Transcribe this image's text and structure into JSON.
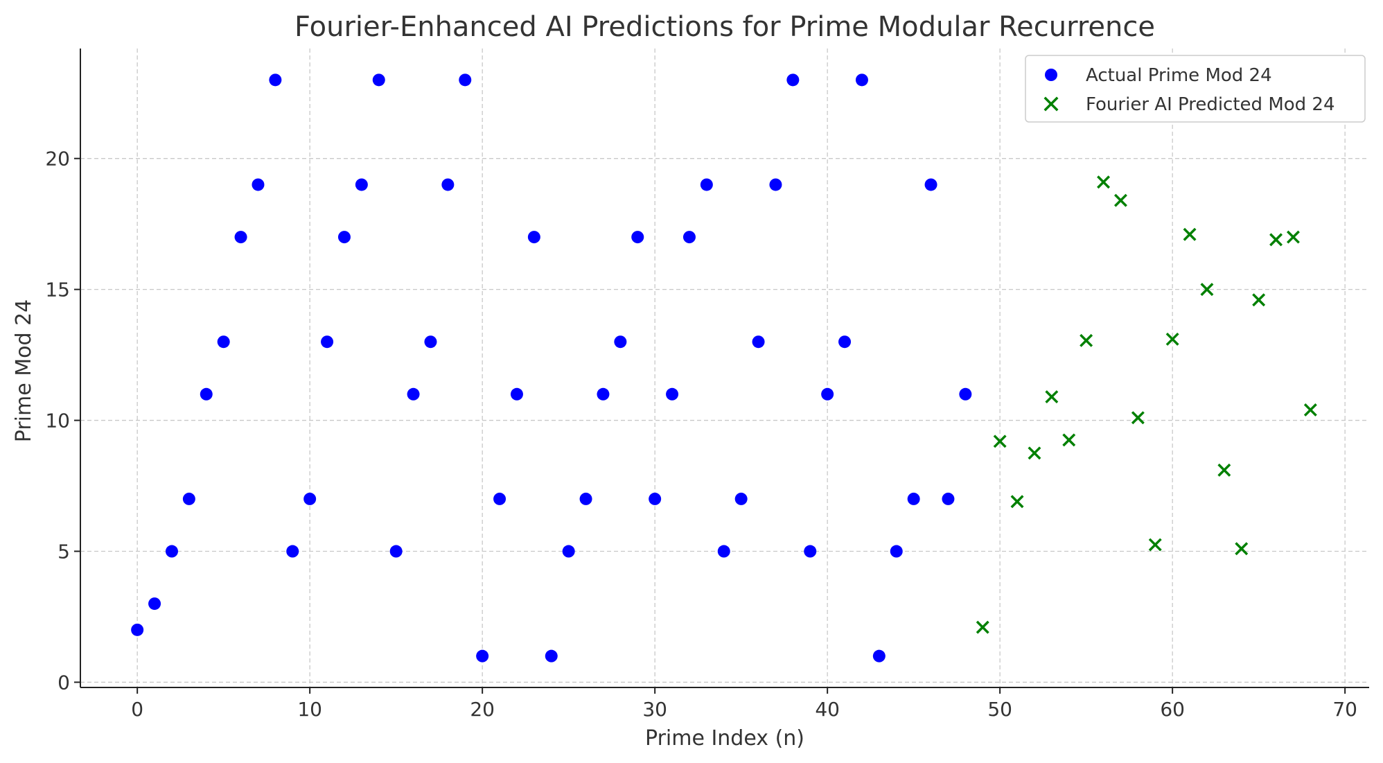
{
  "chart_data": {
    "type": "scatter",
    "title": "Fourier-Enhanced AI Predictions for Prime Modular Recurrence",
    "xlabel": "Prime Index (n)",
    "ylabel": "Prime Mod 24",
    "xlim": [
      -3.3,
      71.4
    ],
    "ylim": [
      -0.2,
      24.2
    ],
    "x_ticks": [
      0,
      10,
      20,
      30,
      40,
      50,
      60,
      70
    ],
    "y_ticks": [
      0,
      5,
      10,
      15,
      20
    ],
    "grid": true,
    "legend_position": "top-right",
    "series": [
      {
        "name": "Actual Prime Mod 24",
        "marker": "circle",
        "color": "#0000ff",
        "x": [
          0,
          1,
          2,
          3,
          4,
          5,
          6,
          7,
          8,
          9,
          10,
          11,
          12,
          13,
          14,
          15,
          16,
          17,
          18,
          19,
          20,
          21,
          22,
          23,
          24,
          25,
          26,
          27,
          28,
          29,
          30,
          31,
          32,
          33,
          34,
          35,
          36,
          37,
          38,
          39,
          40,
          41,
          42,
          43,
          44,
          45,
          46,
          47,
          48
        ],
        "y": [
          2,
          3,
          5,
          7,
          11,
          13,
          17,
          19,
          23,
          5,
          7,
          13,
          17,
          19,
          23,
          5,
          11,
          13,
          19,
          23,
          1,
          7,
          11,
          17,
          1,
          5,
          7,
          11,
          13,
          17,
          7,
          11,
          17,
          19,
          5,
          7,
          13,
          19,
          23,
          5,
          11,
          13,
          23,
          1,
          5,
          7,
          19,
          7,
          11
        ]
      },
      {
        "name": "Fourier AI Predicted Mod 24",
        "marker": "x",
        "color": "#008000",
        "x": [
          49,
          50,
          51,
          52,
          53,
          54,
          55,
          56,
          57,
          58,
          59,
          60,
          61,
          62,
          63,
          64,
          65,
          66,
          67,
          68
        ],
        "y": [
          2.1,
          9.2,
          6.9,
          8.75,
          10.9,
          9.25,
          13.05,
          19.1,
          18.4,
          10.1,
          5.25,
          13.1,
          17.1,
          15.0,
          8.1,
          5.1,
          14.6,
          16.9,
          17.0,
          10.4
        ]
      }
    ]
  }
}
